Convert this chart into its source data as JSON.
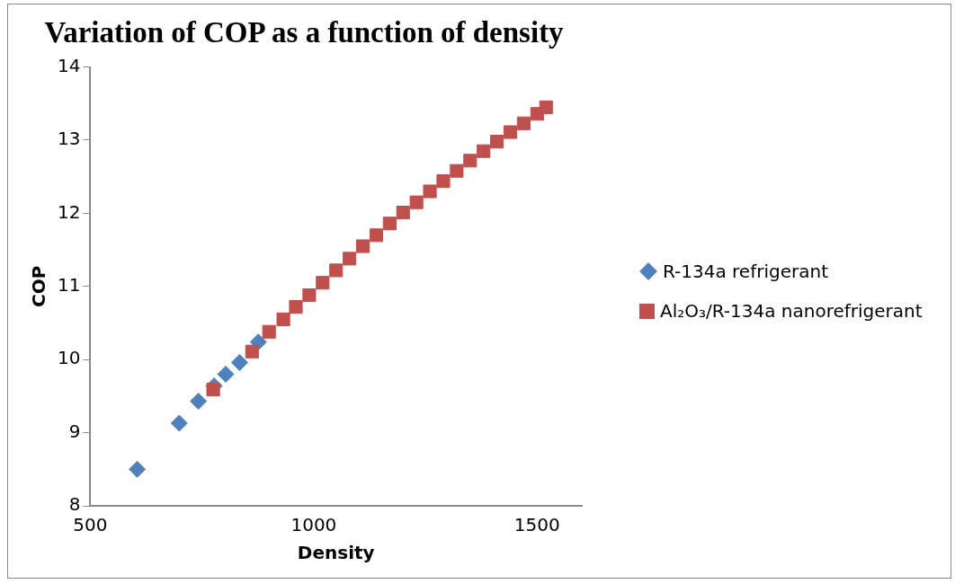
{
  "chart_data": {
    "type": "scatter",
    "title": "Variation of COP as a function of density",
    "xlabel": "Density",
    "ylabel": "COP",
    "xlim": [
      500,
      1600
    ],
    "xticks": [
      500,
      1000,
      1500
    ],
    "ylim": [
      8,
      14
    ],
    "yticks": [
      8,
      9,
      10,
      11,
      12,
      13,
      14
    ],
    "grid": false,
    "legend": "right",
    "series": [
      {
        "name": "R-134a refrigerant",
        "color": "#4f81bd",
        "marker": "diamond",
        "x": [
          605,
          699,
          742,
          777,
          803,
          834,
          876
        ],
        "values": [
          8.5,
          9.13,
          9.43,
          9.64,
          9.8,
          9.96,
          10.24
        ]
      },
      {
        "name": "Al₂O₃/R-134a nanorefrigerant",
        "color": "#c0504d",
        "marker": "square",
        "x": [
          775,
          862,
          900,
          932,
          960,
          990,
          1020,
          1050,
          1080,
          1110,
          1140,
          1170,
          1200,
          1230,
          1260,
          1290,
          1320,
          1350,
          1380,
          1410,
          1440,
          1470,
          1500,
          1520
        ],
        "values": [
          9.59,
          10.11,
          10.38,
          10.55,
          10.72,
          10.88,
          11.05,
          11.22,
          11.38,
          11.55,
          11.7,
          11.86,
          12.01,
          12.15,
          12.3,
          12.44,
          12.58,
          12.72,
          12.85,
          12.98,
          13.11,
          13.23,
          13.36,
          13.45
        ]
      }
    ]
  }
}
